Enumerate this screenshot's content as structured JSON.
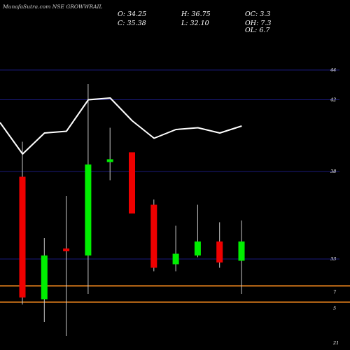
{
  "chart_data": {
    "type": "candlestick",
    "title": "MunafaSutra.com NSE GROWWRAIL",
    "info": [
      {
        "text": "O: 34.25"
      },
      {
        "text": "H: 36.75"
      },
      {
        "text": "OC: 3.3"
      },
      {
        "text": "C: 35.38"
      },
      {
        "text": "L: 32.10"
      },
      {
        "text": "OH: 7.3"
      },
      {
        "text": "OL: 6.7"
      }
    ],
    "y_ticks": [
      {
        "label": "44",
        "value": 44
      },
      {
        "label": "42",
        "value": 42.3
      },
      {
        "label": "38",
        "value": 38.2
      },
      {
        "label": "33",
        "value": 33.2
      }
    ],
    "volume_ticks": [
      {
        "label": "7",
        "value": 7
      },
      {
        "label": "5",
        "value": 5
      },
      {
        "label": "21",
        "value": 0
      }
    ],
    "volume_bars": [
      7,
      5
    ],
    "ylim": [
      29.2,
      47.2
    ],
    "candles": [
      {
        "o": 37.9,
        "h": 39.9,
        "l": 30.6,
        "c": 31.0,
        "color": "red"
      },
      {
        "o": 30.9,
        "h": 34.4,
        "l": 29.6,
        "c": 33.4,
        "color": "green"
      },
      {
        "o": 33.7,
        "h": 36.8,
        "l": 28.8,
        "c": 33.8,
        "color": "red"
      },
      {
        "o": 33.4,
        "h": 43.2,
        "l": 31.2,
        "c": 38.6,
        "color": "green"
      },
      {
        "o": 38.8,
        "h": 40.7,
        "l": 37.7,
        "c": 38.9,
        "color": "green"
      },
      {
        "o": 39.3,
        "h": 39.3,
        "l": 35.8,
        "c": 35.8,
        "color": "red"
      },
      {
        "o": 36.3,
        "h": 36.6,
        "l": 32.5,
        "c": 32.7,
        "color": "red"
      },
      {
        "o": 33.5,
        "h": 35.1,
        "l": 32.5,
        "c": 32.9,
        "color": "green"
      },
      {
        "o": 33.4,
        "h": 36.3,
        "l": 33.3,
        "c": 34.2,
        "color": "green"
      },
      {
        "o": 34.2,
        "h": 35.3,
        "l": 32.7,
        "c": 33.0,
        "color": "red"
      },
      {
        "o": 33.1,
        "h": 35.4,
        "l": 31.2,
        "c": 34.2,
        "color": "green"
      }
    ],
    "line_series": {
      "values": [
        41.0,
        39.2,
        40.4,
        40.5,
        42.3,
        42.4,
        41.1,
        40.1,
        40.6,
        40.7,
        40.4,
        40.8
      ]
    }
  },
  "colors": {
    "background": "#000000",
    "bull": "#00ee00",
    "bear": "#ee0000",
    "grid": "#1a1a7a",
    "volume_line": "#d97a1a",
    "line": "#ffffff",
    "wick": "#c8c8c8"
  }
}
